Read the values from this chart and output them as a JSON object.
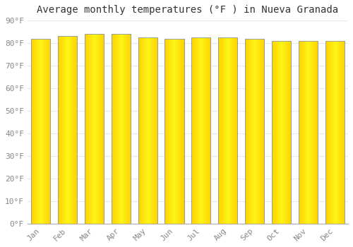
{
  "title": "Average monthly temperatures (°F ) in Nueva Granada",
  "months": [
    "Jan",
    "Feb",
    "Mar",
    "Apr",
    "May",
    "Jun",
    "Jul",
    "Aug",
    "Sep",
    "Oct",
    "Nov",
    "Dec"
  ],
  "values": [
    82,
    83,
    84,
    84,
    82.5,
    82,
    82.5,
    82.5,
    82,
    81,
    81,
    81
  ],
  "bar_color_center": "#FFD84A",
  "bar_color_edge": "#F5A800",
  "bar_border_color": "#8899AA",
  "background_color": "#FFFFFF",
  "grid_color": "#E8E8E8",
  "ylim": [
    0,
    90
  ],
  "yticks": [
    0,
    10,
    20,
    30,
    40,
    50,
    60,
    70,
    80,
    90
  ],
  "title_fontsize": 10,
  "tick_fontsize": 8,
  "font_family": "monospace"
}
